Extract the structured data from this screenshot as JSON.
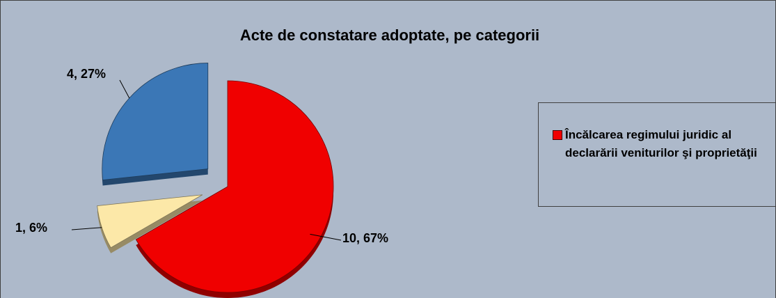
{
  "chart_data": {
    "type": "pie",
    "title": "Acte de constatare adoptate, pe categorii",
    "categories": [
      "Încălcarea regimului juridic al declarării veniturilor şi proprietăţii",
      null,
      null
    ],
    "values": [
      10,
      1,
      4
    ],
    "value_labels": [
      "10, 67%",
      "1, 6%",
      "4, 27%"
    ],
    "colors": [
      "#f00000",
      "#fce8a8",
      "#3b77b6"
    ],
    "legend": "right"
  }
}
